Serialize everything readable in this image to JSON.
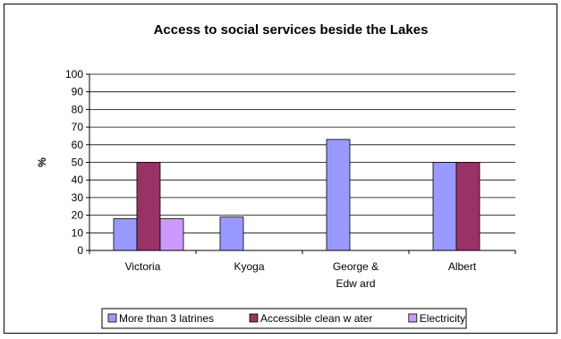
{
  "chart_data": {
    "type": "bar",
    "title": "Access to social services beside the Lakes",
    "ylabel": "%",
    "xlabel": "",
    "ylim": [
      0,
      100
    ],
    "yticks": [
      0,
      10,
      20,
      30,
      40,
      50,
      60,
      70,
      80,
      90,
      100
    ],
    "grid": true,
    "legend_position": "bottom",
    "categories": [
      [
        "Victoria"
      ],
      [
        "Kyoga"
      ],
      [
        "George &",
        "Edw ard"
      ],
      [
        "Albert"
      ]
    ],
    "series": [
      {
        "name": "More than 3 latrines",
        "color": "#9999ff",
        "values": [
          18,
          19,
          63,
          50
        ]
      },
      {
        "name": "Accessible clean w ater",
        "color": "#993366",
        "values": [
          50,
          0,
          0,
          50
        ]
      },
      {
        "name": "Electricity",
        "color": "#cc99ff",
        "values": [
          18,
          0,
          0,
          0
        ]
      }
    ]
  }
}
